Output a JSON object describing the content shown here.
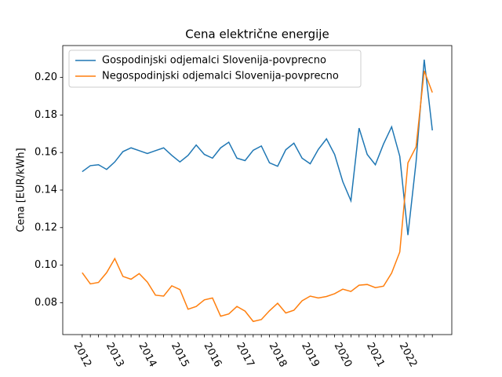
{
  "chart_data": {
    "type": "line",
    "title": "Cena električne energije",
    "y_label": "Cena [EUR/kWh]",
    "categories": [
      "2012",
      null,
      null,
      null,
      "2013",
      null,
      null,
      null,
      "2014",
      null,
      null,
      null,
      "2015",
      null,
      null,
      null,
      "2016",
      null,
      null,
      null,
      "2017",
      null,
      null,
      null,
      "2018",
      null,
      null,
      null,
      "2019",
      null,
      null,
      null,
      "2020",
      null,
      null,
      null,
      "2021",
      null,
      null,
      null,
      "2022",
      null,
      null,
      null
    ],
    "series": [
      {
        "name": "Gospodinjski odjemalci Slovenija-povprecno",
        "color": "#1f77b4",
        "values": [
          0.1498,
          0.153,
          0.1535,
          0.151,
          0.155,
          0.1605,
          0.1625,
          0.161,
          0.1595,
          0.161,
          0.1625,
          0.1585,
          0.155,
          0.1585,
          0.164,
          0.159,
          0.157,
          0.1625,
          0.1655,
          0.157,
          0.1557,
          0.1612,
          0.1635,
          0.1545,
          0.1527,
          0.1615,
          0.165,
          0.157,
          0.154,
          0.1617,
          0.1673,
          0.159,
          0.1445,
          0.1343,
          0.173,
          0.159,
          0.1535,
          0.1645,
          0.1737,
          0.158,
          0.116,
          0.155,
          0.2095,
          0.1718
        ]
      },
      {
        "name": "Negospodinjski odjemalci Slovenija-povprecno",
        "color": "#ff7f0e",
        "values": [
          0.096,
          0.09,
          0.0908,
          0.096,
          0.1035,
          0.094,
          0.0925,
          0.0955,
          0.091,
          0.084,
          0.0835,
          0.089,
          0.087,
          0.0765,
          0.078,
          0.0815,
          0.0825,
          0.0728,
          0.074,
          0.078,
          0.0755,
          0.07,
          0.071,
          0.0757,
          0.0797,
          0.0745,
          0.076,
          0.081,
          0.0835,
          0.0825,
          0.0833,
          0.0848,
          0.0872,
          0.086,
          0.0893,
          0.0897,
          0.088,
          0.0888,
          0.0958,
          0.107,
          0.1545,
          0.163,
          0.2035,
          0.192
        ]
      }
    ],
    "ylim": [
      0.063,
      0.217
    ],
    "yticks": [
      0.08,
      {
        "value": 0.1,
        "label": "0.10"
      },
      0.12,
      0.14,
      0.16,
      0.18,
      {
        "value": 0.2,
        "label": "0.20"
      }
    ],
    "legend": "upper left"
  }
}
